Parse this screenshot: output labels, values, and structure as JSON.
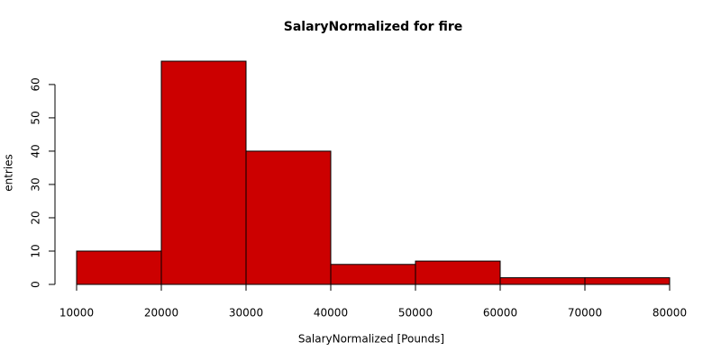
{
  "chart_data": {
    "type": "histogram",
    "title": "SalaryNormalized for fire",
    "x_label": "SalaryNormalized [Pounds]",
    "y_label": "entries",
    "bins": [
      10000,
      20000,
      30000,
      40000,
      50000,
      60000,
      70000,
      80000
    ],
    "values": [
      10,
      67,
      40,
      6,
      7,
      2,
      2
    ],
    "color": "#cc0000",
    "xlim": [
      10000,
      80000
    ],
    "xticks": [
      10000,
      20000,
      30000,
      40000,
      50000,
      60000,
      70000,
      80000
    ],
    "ylim": [
      0,
      67
    ],
    "yticks": [
      0,
      10,
      20,
      30,
      40,
      50,
      60
    ]
  }
}
